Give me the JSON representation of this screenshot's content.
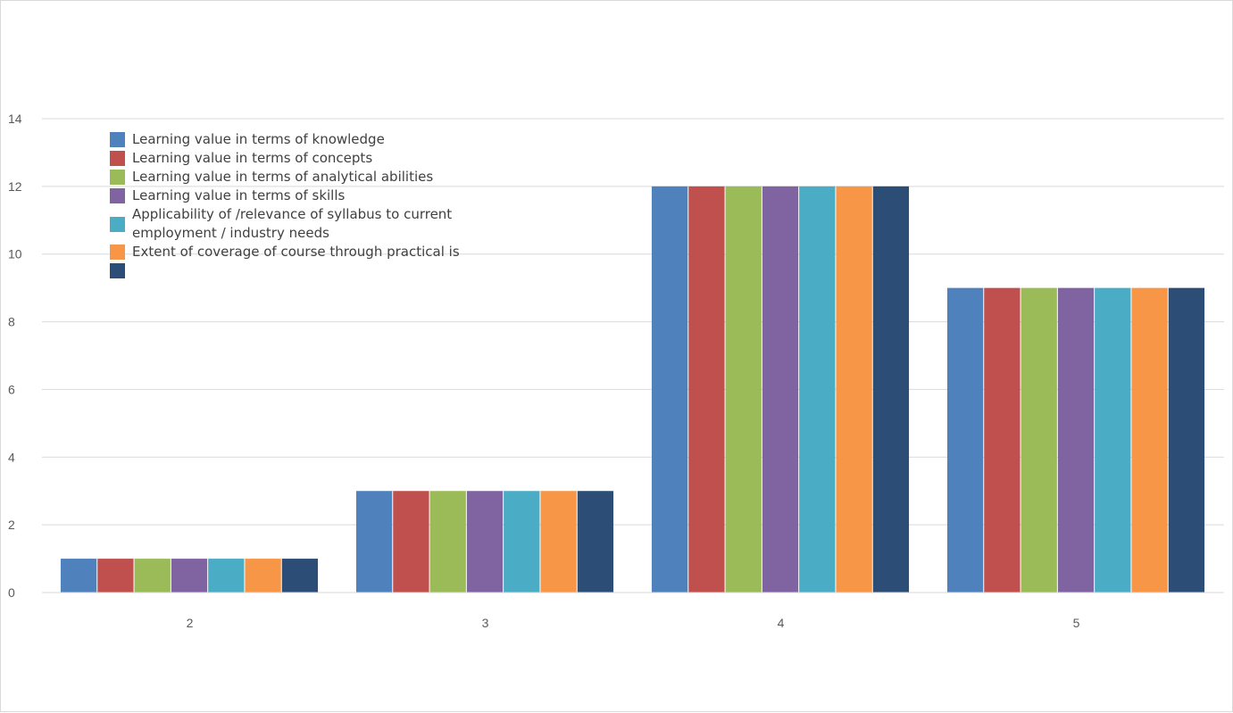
{
  "chart_data": {
    "type": "bar",
    "title": "",
    "xlabel": "",
    "ylabel": "",
    "categories": [
      "2",
      "3",
      "4",
      "5"
    ],
    "ylim": [
      0,
      14
    ],
    "y_ticks": [
      "0",
      "2",
      "4",
      "6",
      "8",
      "10",
      "12",
      "14"
    ],
    "grid": true,
    "legend_position": "top-left",
    "series": [
      {
        "name": "Learning value  in terms of knowledge",
        "color": "#4F81BD",
        "values": [
          1,
          3,
          12,
          9
        ]
      },
      {
        "name": "Learning value  in terms of  concepts",
        "color": "#C0504D",
        "values": [
          1,
          3,
          12,
          9
        ]
      },
      {
        "name": "Learning value  in terms of analytical abilities",
        "color": "#9BBB59",
        "values": [
          1,
          3,
          12,
          9
        ]
      },
      {
        "name": "Learning value  in terms of skills",
        "color": "#8064A2",
        "values": [
          1,
          3,
          12,
          9
        ]
      },
      {
        "name": "Applicability of /relevance of syllabus to current employment / industry needs",
        "color": "#4BACC6",
        "values": [
          1,
          3,
          12,
          9
        ]
      },
      {
        "name": "Extent of coverage of course through practical is",
        "color": "#F79646",
        "values": [
          1,
          3,
          12,
          9
        ]
      },
      {
        "name": "",
        "color": "#2C4D75",
        "values": [
          1,
          3,
          12,
          9
        ]
      }
    ]
  }
}
